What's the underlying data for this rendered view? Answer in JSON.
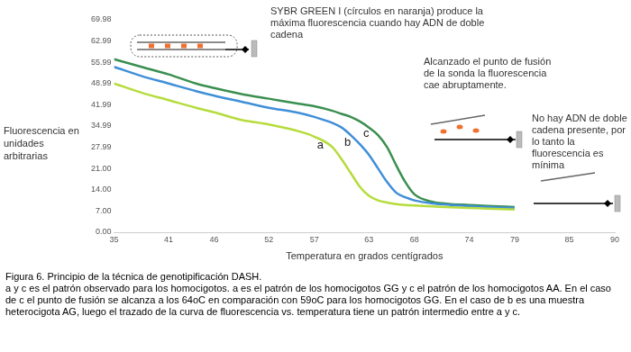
{
  "chart_data": {
    "type": "line",
    "x_label": "Temperatura en grados centígrados",
    "y_label": "Fluorescencia en unidades arbitrarias",
    "xlim": [
      35,
      90
    ],
    "xticks": [
      35,
      41,
      46,
      52,
      57,
      63,
      68,
      74,
      79,
      85,
      90
    ],
    "ylim": [
      0,
      69.98
    ],
    "yticks": [
      {
        "value": 0,
        "label": "0.00"
      },
      {
        "value": 7,
        "label": "7.00"
      },
      {
        "value": 14,
        "label": "14.00"
      },
      {
        "value": 21,
        "label": "21.00"
      },
      27.99,
      34.99,
      41.99,
      48.99,
      55.99,
      62.99,
      69.98
    ],
    "grid": false,
    "x": [
      35,
      38,
      41,
      44,
      46,
      49,
      52,
      55,
      57,
      59,
      60,
      61,
      62,
      63,
      64,
      65,
      66,
      67,
      68,
      70,
      72,
      74,
      76,
      79
    ],
    "series": [
      {
        "name": "a",
        "color": "#b5dc3c",
        "values": [
          49,
          46,
          43.5,
          41,
          39.5,
          37,
          35.5,
          33.5,
          31.5,
          28,
          24,
          19.5,
          15,
          12,
          10.5,
          9.8,
          9.3,
          9,
          8.8,
          8.5,
          8.2,
          8,
          7.8,
          7.5
        ]
      },
      {
        "name": "b",
        "color": "#3f8fd8",
        "values": [
          54.5,
          51.5,
          49,
          46.5,
          45,
          43,
          41,
          39.5,
          38,
          36,
          34.5,
          32,
          29,
          25.5,
          21,
          16.5,
          13,
          11.5,
          10.5,
          9.5,
          9,
          8.6,
          8.3,
          8
        ]
      },
      {
        "name": "c",
        "color": "#3a8f50",
        "values": [
          57,
          54.5,
          52,
          49,
          47.5,
          45.5,
          44,
          42.5,
          41.5,
          40,
          39,
          38,
          36.5,
          34.5,
          32,
          28,
          22,
          16.5,
          12.5,
          10,
          9.3,
          9,
          8.7,
          8.3
        ]
      }
    ],
    "annotations": [
      "SYBR GREEN I (círculos en naranja) produce la máxima fluorescencia cuando hay ADN de doble cadena",
      "Alcanzado el punto de fusión de la sonda la fluorescencia cae abruptamente.",
      "No hay ADN de doble cadena presente, por lo tanto la fluorescencia es mínima"
    ],
    "caption": {
      "title": "Figura 6. Principio de la técnica de genotipificación DASH.",
      "text": "a y c es el patrón observado para los homocigotos. a es el patrón de los homocigotos GG y c el patrón de los homocigotos AA. En el caso de c el punto de fusión se alcanza a los 64oC en comparación con 59oC para los homocigotos GG. En el caso de b es una muestra heterocigota AG, luego el trazado de la curva de fluorescencia vs. temperatura tiene un patrón intermedio entre a y c."
    }
  }
}
